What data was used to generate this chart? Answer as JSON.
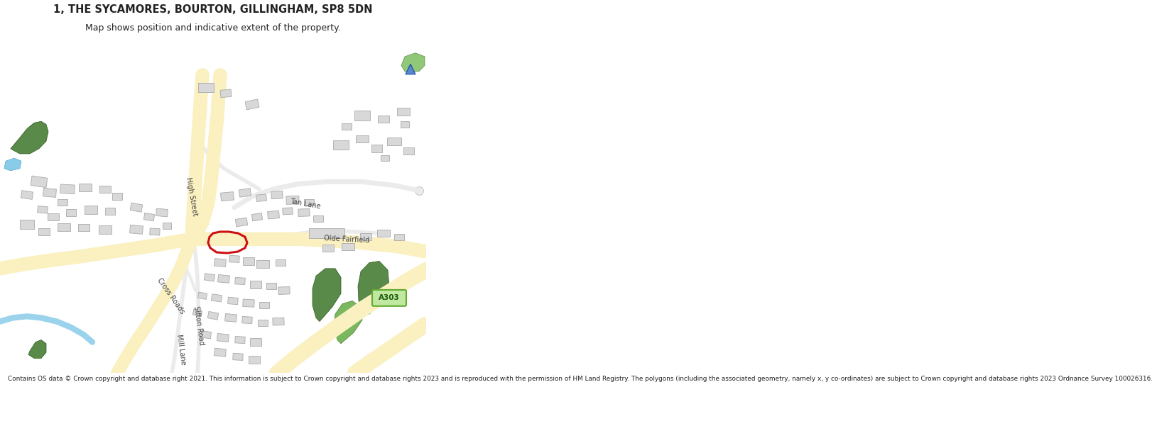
{
  "title_line1": "1, THE SYCAMORES, BOURTON, GILLINGHAM, SP8 5DN",
  "title_line2": "Map shows position and indicative extent of the property.",
  "footer": "Contains OS data © Crown copyright and database right 2021. This information is subject to Crown copyright and database rights 2023 and is reproduced with the permission of HM Land Registry. The polygons (including the associated geometry, namely x, y co-ordinates) are subject to Crown copyright and database rights 2023 Ordnance Survey 100026316.",
  "bg_color": "#ffffff",
  "map_bg": "#f9f9f9",
  "road_major_fill": "#faf0c0",
  "road_major_border": "#e8b820",
  "road_minor_fill": "#ffffff",
  "road_minor_border": "#c8c8c8",
  "road_gray_fill": "#ebebeb",
  "road_gray_border": "#b0b0b0",
  "building_color": "#d8d8d8",
  "building_border": "#aaaaaa",
  "green_dark": "#5a8a4a",
  "green_light": "#8ab870",
  "water_blue": "#88cce8",
  "red_color": "#cc1111",
  "a303_green_fill": "#c0e8a0",
  "a303_green_border": "#60aa30",
  "title_fontsize": 10.5,
  "subtitle_fontsize": 9,
  "footer_fontsize": 6.4,
  "label_fontsize": 7,
  "label_color": "#444444"
}
